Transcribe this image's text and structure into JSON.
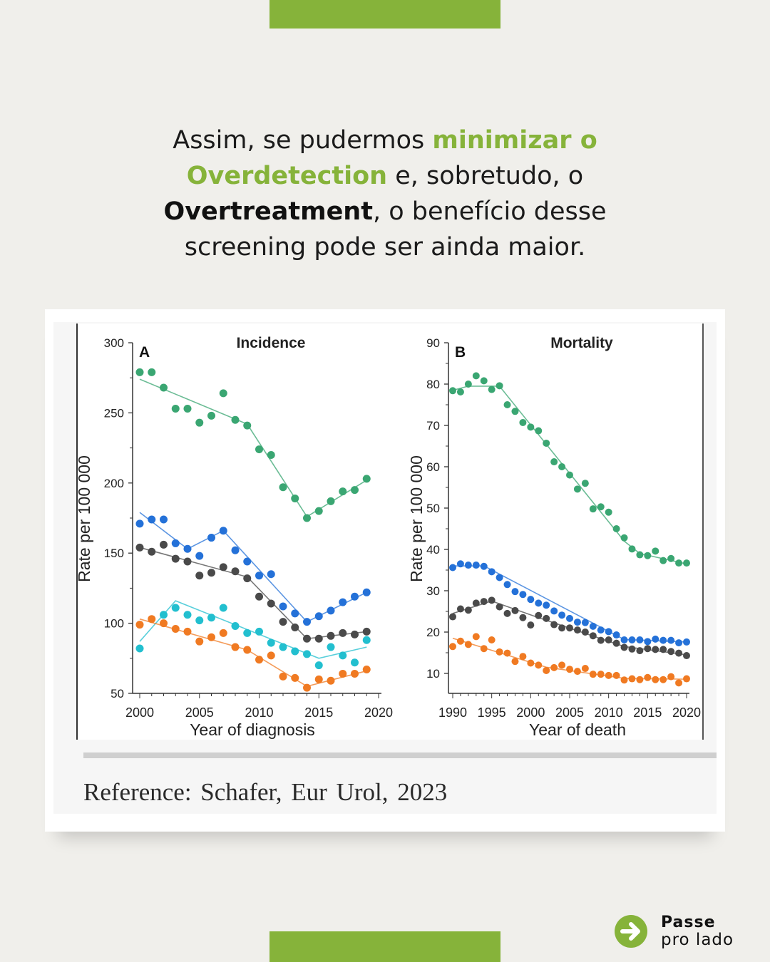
{
  "headline": {
    "p1": "Assim, se pudermos ",
    "g1": "minimizar o",
    "g2": "Overdetection",
    "p2": " e, sobretudo, o",
    "b1": "Overtreatment",
    "p3": ", o benefício desse",
    "p4": "screening pode ser ainda maior."
  },
  "reference": "Reference:  Schafer, Eur Urol, 2023",
  "cta": {
    "line1": "Passe",
    "line2": "pro lado",
    "icon": "arrow-right-circle-icon"
  },
  "colors": {
    "accent": "#86b33a",
    "background": "#f0efeb"
  },
  "chart_data": [
    {
      "type": "scatter",
      "panel": "A",
      "title": "Incidence",
      "xlabel": "Year of diagnosis",
      "ylabel": "Rate per 100 000",
      "xlim": [
        2000,
        2020
      ],
      "ylim": [
        50,
        300
      ],
      "xticks": [
        2000,
        2005,
        2010,
        2015,
        2020
      ],
      "yticks": [
        50,
        100,
        150,
        200,
        250,
        300
      ],
      "x": [
        2000,
        2001,
        2002,
        2003,
        2004,
        2005,
        2006,
        2007,
        2008,
        2009,
        2010,
        2011,
        2012,
        2013,
        2014,
        2015,
        2016,
        2017,
        2018,
        2019
      ],
      "series": [
        {
          "name": "green",
          "color": "#3aa672",
          "values": [
            279,
            279,
            268,
            253,
            253,
            243,
            248,
            264,
            245,
            241,
            224,
            220,
            197,
            189,
            175,
            180,
            187,
            194,
            195,
            203
          ],
          "trend": [
            [
              2000,
              274
            ],
            [
              2009,
              242
            ],
            [
              2014,
              176
            ],
            [
              2019,
              202
            ]
          ]
        },
        {
          "name": "blue",
          "color": "#2471d8",
          "values": [
            171,
            174,
            174,
            157,
            153,
            148,
            161,
            166,
            152,
            144,
            134,
            135,
            112,
            107,
            101,
            105,
            109,
            115,
            119,
            122
          ],
          "trend": [
            [
              2000,
              179
            ],
            [
              2004,
              153
            ],
            [
              2007,
              166
            ],
            [
              2014,
              101
            ],
            [
              2019,
              122
            ]
          ]
        },
        {
          "name": "gray",
          "color": "#4a4a4a",
          "values": [
            154,
            151,
            156,
            146,
            144,
            134,
            136,
            140,
            137,
            132,
            119,
            114,
            101,
            97,
            89,
            89,
            91,
            93,
            92,
            94
          ],
          "trend": [
            [
              2000,
              154
            ],
            [
              2009,
              133
            ],
            [
              2014,
              89
            ],
            [
              2019,
              94
            ]
          ]
        },
        {
          "name": "cyan",
          "color": "#22bfcf",
          "values": [
            82,
            null,
            106,
            111,
            106,
            102,
            104,
            111,
            98,
            93,
            94,
            86,
            83,
            80,
            78,
            70,
            83,
            77,
            72,
            88
          ],
          "trend": [
            [
              2000,
              87
            ],
            [
              2003,
              116
            ],
            [
              2015,
              75
            ],
            [
              2019,
              83
            ]
          ]
        },
        {
          "name": "orange",
          "color": "#f07a22",
          "values": [
            99,
            103,
            100,
            96,
            94,
            87,
            90,
            93,
            83,
            81,
            74,
            77,
            62,
            61,
            54,
            60,
            59,
            64,
            64,
            67
          ],
          "trend": [
            [
              2000,
              103
            ],
            [
              2009,
              81
            ],
            [
              2014,
              55
            ],
            [
              2019,
              66
            ]
          ]
        }
      ]
    },
    {
      "type": "scatter",
      "panel": "B",
      "title": "Mortality",
      "xlabel": "Year of death",
      "ylabel": "Rate per 100 000",
      "xlim": [
        1990,
        2020
      ],
      "ylim": [
        5,
        90
      ],
      "xticks": [
        1990,
        1995,
        2000,
        2005,
        2010,
        2015,
        2020
      ],
      "yticks": [
        10,
        20,
        30,
        40,
        50,
        60,
        70,
        80,
        90
      ],
      "x": [
        1990,
        1991,
        1992,
        1993,
        1994,
        1995,
        1996,
        1997,
        1998,
        1999,
        2000,
        2001,
        2002,
        2003,
        2004,
        2005,
        2006,
        2007,
        2008,
        2009,
        2010,
        2011,
        2012,
        2013,
        2014,
        2015,
        2016,
        2017,
        2018,
        2019,
        2020
      ],
      "series": [
        {
          "name": "green",
          "color": "#3aa672",
          "values": [
            78.4,
            78.1,
            80,
            82,
            80.8,
            78.7,
            79.6,
            75,
            73.4,
            70.7,
            69.6,
            68.7,
            65.7,
            61.2,
            60,
            58,
            54.6,
            56,
            49.8,
            50.3,
            49,
            45,
            42.8,
            40.1,
            38.7,
            38.5,
            39.6,
            37.3,
            37.8,
            36.7,
            36.7
          ],
          "trend": [
            [
              1990,
              78.5
            ],
            [
              1992,
              79.5
            ],
            [
              1996,
              79.5
            ],
            [
              2012,
              42
            ],
            [
              2014,
              39
            ],
            [
              2020,
              36.5
            ]
          ]
        },
        {
          "name": "blue",
          "color": "#2471d8",
          "values": [
            35.6,
            36.5,
            36.2,
            36.2,
            35.9,
            34.6,
            33.2,
            31.5,
            29.8,
            29.1,
            27.9,
            27,
            26.5,
            25.1,
            24.1,
            23.3,
            22.4,
            22.3,
            21.4,
            20.5,
            20.1,
            19.3,
            18.1,
            18.1,
            18.1,
            17.7,
            18.3,
            18,
            18,
            17.4,
            17.6
          ],
          "trend": [
            [
              1990,
              36
            ],
            [
              1994,
              36
            ],
            [
              2012,
              18.2
            ],
            [
              2020,
              17.6
            ]
          ]
        },
        {
          "name": "gray",
          "color": "#4a4a4a",
          "values": [
            23.7,
            25.6,
            25.3,
            27,
            27.4,
            27.7,
            26.1,
            24.5,
            25.2,
            23.5,
            21.7,
            24,
            23.3,
            21.8,
            21,
            21,
            20.5,
            20,
            19.1,
            18,
            18.1,
            17.3,
            16.3,
            15.9,
            15.5,
            16,
            15.8,
            15.8,
            15.3,
            14.9,
            14.3
          ],
          "trend": [
            [
              1990,
              24.5
            ],
            [
              1995,
              27.5
            ],
            [
              2001,
              23.5
            ],
            [
              2012,
              16.5
            ],
            [
              2020,
              14.5
            ]
          ]
        },
        {
          "name": "orange",
          "color": "#f07a22",
          "values": [
            16.5,
            17.8,
            17,
            18.9,
            16,
            18.1,
            15.2,
            14.9,
            12.9,
            14.1,
            12.5,
            12,
            10.7,
            11.4,
            12,
            11,
            10.5,
            11.2,
            9.8,
            9.8,
            9.5,
            9.5,
            8.4,
            8.7,
            8.5,
            9,
            8.5,
            8.5,
            9.2,
            7.7,
            8.7
          ],
          "trend": [
            [
              1990,
              18.5
            ],
            [
              2002,
              11.5
            ],
            [
              2012,
              8.8
            ],
            [
              2020,
              8.6
            ]
          ]
        }
      ]
    }
  ]
}
